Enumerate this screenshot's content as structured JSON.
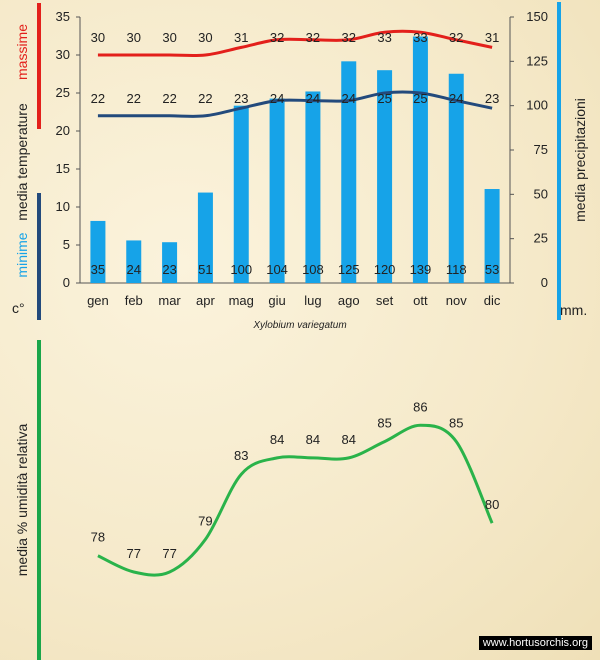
{
  "colors": {
    "max_temp": "#e3201b",
    "mean_temp": "#234a7c",
    "precip": "#16a3e8",
    "humidity": "#2ab34a",
    "green_bar": "#1aa64a"
  },
  "labels": {
    "massime": "massime",
    "media_temperature": "media  temperature",
    "minime": "minime",
    "unit_temp": "c°",
    "media_precipitazioni": "media  precipitazioni",
    "unit_precip": "mm.",
    "species": "Xylobium  variegatum",
    "humidity_axis": "media %  umidità relativa",
    "credit": "www.hortusorchis.org"
  },
  "chart_data": [
    {
      "type": "bar",
      "categories": [
        "gen",
        "feb",
        "mar",
        "apr",
        "mag",
        "giu",
        "lug",
        "ago",
        "set",
        "ott",
        "nov",
        "dic"
      ],
      "series": [
        {
          "values": [
            30,
            30,
            30,
            30,
            31,
            32,
            32,
            32,
            33,
            33,
            32,
            31
          ]
        },
        {
          "values": [
            22,
            22,
            22,
            22,
            23,
            24,
            24,
            24,
            25,
            25,
            24,
            23
          ]
        },
        {
          "values": [
            35,
            24,
            23,
            51,
            100,
            104,
            108,
            125,
            120,
            139,
            118,
            53
          ]
        }
      ],
      "y_left_range": [
        0,
        35
      ],
      "y_left_ticks": [
        0,
        5,
        10,
        15,
        20,
        25,
        30,
        35
      ],
      "y_right_range": [
        0,
        150
      ],
      "y_right_ticks": [
        0,
        25,
        50,
        75,
        100,
        125,
        150
      ],
      "ylabel_left": "media  temperature",
      "ylabel_right": "media  precipitazioni"
    },
    {
      "type": "line",
      "categories": [
        "gen",
        "feb",
        "mar",
        "apr",
        "mag",
        "giu",
        "lug",
        "ago",
        "set",
        "ott",
        "nov",
        "dic"
      ],
      "series": [
        {
          "values": [
            78,
            77,
            77,
            79,
            83,
            84,
            84,
            84,
            85,
            86,
            85,
            80
          ]
        }
      ],
      "ylabel": "media %  umidità relativa"
    }
  ]
}
